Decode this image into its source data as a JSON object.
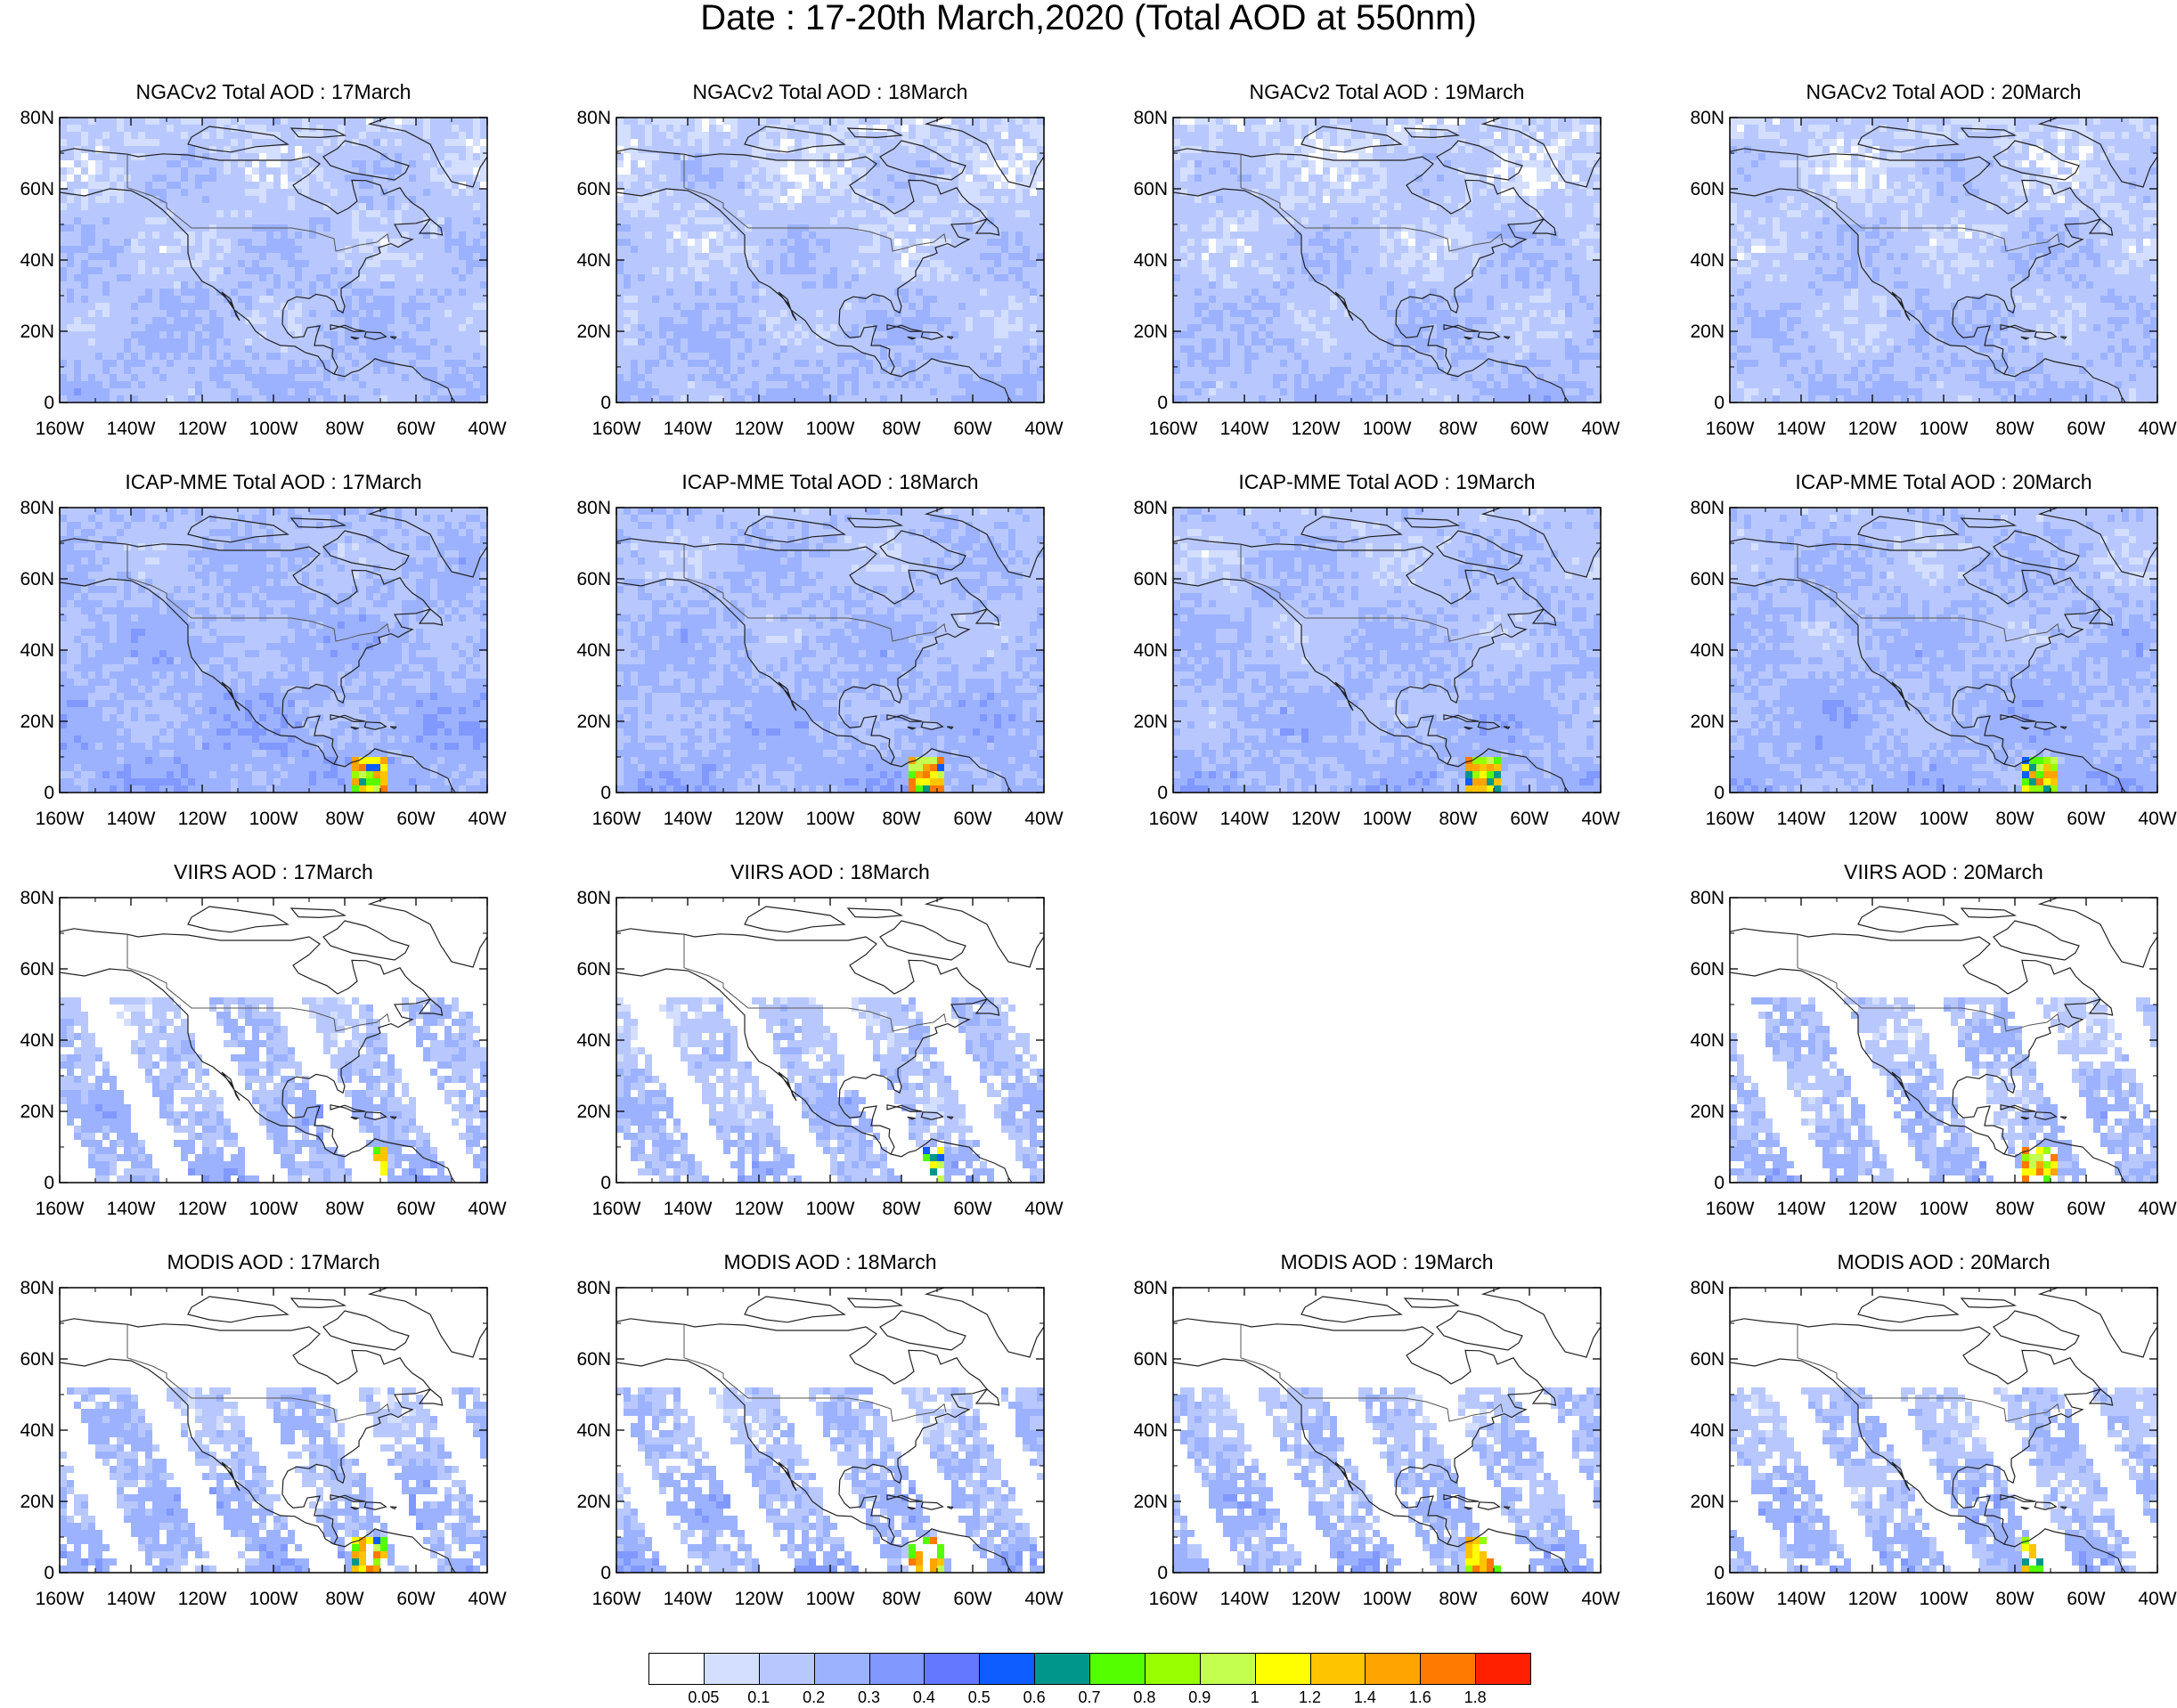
{
  "title": "Date : 17-20th March,2020 (Total AOD at 550nm)",
  "axes": {
    "x_ticks": [
      "160W",
      "140W",
      "120W",
      "100W",
      "80W",
      "60W",
      "40W"
    ],
    "y_ticks": [
      "80N",
      "60N",
      "40N",
      "20N",
      "0"
    ]
  },
  "panels": [
    {
      "title": "NGACv2 Total AOD : 17March",
      "kind": "model",
      "base": 0.12,
      "gradient": 0.1,
      "hotspot": false
    },
    {
      "title": "NGACv2 Total AOD : 18March",
      "kind": "model",
      "base": 0.1,
      "gradient": 0.12,
      "hotspot": false
    },
    {
      "title": "NGACv2 Total AOD : 19March",
      "kind": "model",
      "base": 0.1,
      "gradient": 0.12,
      "hotspot": false
    },
    {
      "title": "NGACv2 Total AOD : 20March",
      "kind": "model",
      "base": 0.11,
      "gradient": 0.1,
      "hotspot": false
    },
    {
      "title": "ICAP-MME Total AOD : 17March",
      "kind": "model",
      "base": 0.18,
      "gradient": 0.1,
      "hotspot": true
    },
    {
      "title": "ICAP-MME Total AOD : 18March",
      "kind": "model",
      "base": 0.16,
      "gradient": 0.1,
      "hotspot": true
    },
    {
      "title": "ICAP-MME Total AOD : 19March",
      "kind": "model",
      "base": 0.15,
      "gradient": 0.1,
      "hotspot": true
    },
    {
      "title": "ICAP-MME Total AOD : 20March",
      "kind": "model",
      "base": 0.16,
      "gradient": 0.1,
      "hotspot": true
    },
    {
      "title": "VIIRS AOD : 17March",
      "kind": "satellite",
      "base": 0.12,
      "gradient": 0.15,
      "hotspot": true
    },
    {
      "title": "VIIRS AOD : 18March",
      "kind": "satellite",
      "base": 0.1,
      "gradient": 0.15,
      "hotspot": true
    },
    null,
    {
      "title": "VIIRS AOD : 20March",
      "kind": "satellite",
      "base": 0.11,
      "gradient": 0.15,
      "hotspot": true
    },
    {
      "title": "MODIS AOD : 17March",
      "kind": "satellite",
      "base": 0.13,
      "gradient": 0.15,
      "hotspot": true
    },
    {
      "title": "MODIS AOD : 18March",
      "kind": "satellite",
      "base": 0.12,
      "gradient": 0.15,
      "hotspot": true
    },
    {
      "title": "MODIS AOD : 19March",
      "kind": "satellite",
      "base": 0.12,
      "gradient": 0.15,
      "hotspot": true
    },
    {
      "title": "MODIS AOD : 20March",
      "kind": "satellite",
      "base": 0.12,
      "gradient": 0.15,
      "hotspot": true
    }
  ],
  "colorbar": {
    "colors": [
      "#ffffff",
      "#d4deff",
      "#b8c8ff",
      "#9cb2ff",
      "#8098ff",
      "#6478ff",
      "#0c5cff",
      "#00968c",
      "#54ff00",
      "#96ff00",
      "#c4ff50",
      "#ffff00",
      "#ffc400",
      "#ffa400",
      "#ff7a00",
      "#ff2000"
    ],
    "labels": [
      "0.05",
      "0.1",
      "0.2",
      "0.3",
      "0.4",
      "0.5",
      "0.6",
      "0.7",
      "0.8",
      "0.9",
      "1",
      "1.2",
      "1.4",
      "1.6",
      "1.8"
    ]
  }
}
